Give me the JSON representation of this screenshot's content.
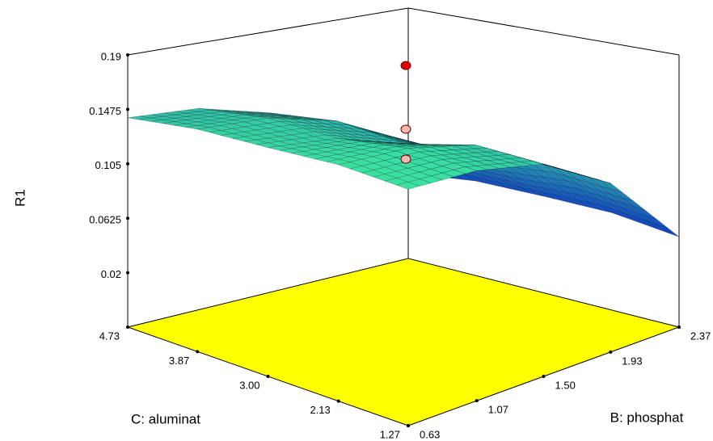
{
  "chart_data": {
    "type": "surface3d",
    "z_label": "R1",
    "b_label": "B: phosphat",
    "c_label": "C: aluminat",
    "blim": [
      0.63,
      2.37
    ],
    "bticks": [
      0.63,
      1.07,
      {
        "value": 1.5,
        "label": "1.50"
      },
      1.93,
      2.37
    ],
    "clim": [
      1.27,
      4.73
    ],
    "cticks": [
      1.27,
      2.13,
      {
        "value": 3,
        "label": "3.00"
      },
      3.87,
      4.73
    ],
    "zlim": [
      -0.0225,
      0.19
    ],
    "zticks": [
      0.02,
      0.0625,
      0.105,
      0.1475,
      0.19
    ],
    "floor_color": "#ffff00",
    "surface": {
      "b": [
        0.63,
        1.07,
        1.5,
        1.93,
        2.37
      ],
      "c": [
        1.27,
        2.13,
        3.0,
        3.87,
        4.73
      ],
      "z": [
        [
          0.166,
          0.16,
          0.145,
          0.11,
          0.048
        ],
        [
          0.165,
          0.16,
          0.145,
          0.112,
          0.055
        ],
        [
          0.158,
          0.15,
          0.13,
          0.104,
          0.056
        ],
        [
          0.152,
          0.148,
          0.133,
          0.104,
          0.056
        ],
        [
          0.141,
          0.138,
          0.124,
          0.096,
          0.05
        ]
      ]
    },
    "points": [
      {
        "b": 1.5,
        "c": 3,
        "z": 0.193,
        "color": "#e00000"
      },
      {
        "b": 1.5,
        "c": 3,
        "z": 0.142,
        "color": "#f4b8b0"
      },
      {
        "b": 1.5,
        "c": 3,
        "z": 0.118,
        "color": "#f4b8b0"
      }
    ]
  }
}
